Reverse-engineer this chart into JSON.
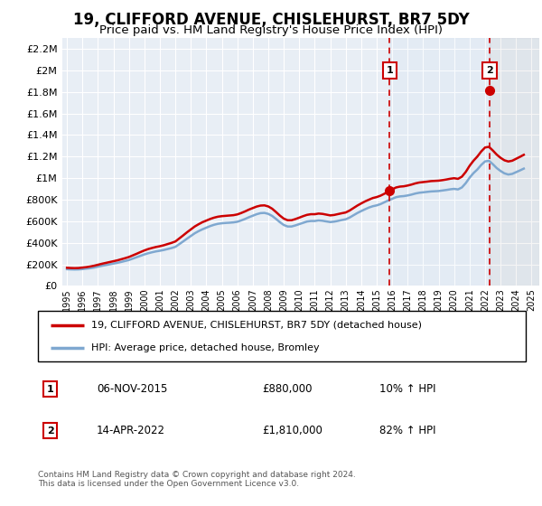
{
  "title": "19, CLIFFORD AVENUE, CHISLEHURST, BR7 5DY",
  "subtitle": "Price paid vs. HM Land Registry's House Price Index (HPI)",
  "title_fontsize": 12,
  "subtitle_fontsize": 9.5,
  "background_color": "#ffffff",
  "plot_bg_color": "#e8eef5",
  "grid_color": "#ffffff",
  "ylim": [
    0,
    2300000
  ],
  "yticks": [
    0,
    200000,
    400000,
    600000,
    800000,
    1000000,
    1200000,
    1400000,
    1600000,
    1800000,
    2000000,
    2200000
  ],
  "ytick_labels": [
    "£0",
    "£200K",
    "£400K",
    "£600K",
    "£800K",
    "£1M",
    "£1.2M",
    "£1.4M",
    "£1.6M",
    "£1.8M",
    "£2M",
    "£2.2M"
  ],
  "xlim_start": 1994.7,
  "xlim_end": 2025.5,
  "xtick_years": [
    1995,
    1996,
    1997,
    1998,
    1999,
    2000,
    2001,
    2002,
    2003,
    2004,
    2005,
    2006,
    2007,
    2008,
    2009,
    2010,
    2011,
    2012,
    2013,
    2014,
    2015,
    2016,
    2017,
    2018,
    2019,
    2020,
    2021,
    2022,
    2023,
    2024,
    2025
  ],
  "hpi_color": "#7fa8d0",
  "price_color": "#cc0000",
  "marker1_x": 2015.84,
  "marker1_y": 880000,
  "marker1_label": "1",
  "marker2_x": 2022.28,
  "marker2_y": 1810000,
  "marker2_label": "2",
  "annotation1": [
    "1",
    "06-NOV-2015",
    "£880,000",
    "10% ↑ HPI"
  ],
  "annotation2": [
    "2",
    "14-APR-2022",
    "£1,810,000",
    "82% ↑ HPI"
  ],
  "legend_line1": "19, CLIFFORD AVENUE, CHISLEHURST, BR7 5DY (detached house)",
  "legend_line2": "HPI: Average price, detached house, Bromley",
  "footer": "Contains HM Land Registry data © Crown copyright and database right 2024.\nThis data is licensed under the Open Government Licence v3.0.",
  "hpi_data_x": [
    1995.0,
    1995.25,
    1995.5,
    1995.75,
    1996.0,
    1996.25,
    1996.5,
    1996.75,
    1997.0,
    1997.25,
    1997.5,
    1997.75,
    1998.0,
    1998.25,
    1998.5,
    1998.75,
    1999.0,
    1999.25,
    1999.5,
    1999.75,
    2000.0,
    2000.25,
    2000.5,
    2000.75,
    2001.0,
    2001.25,
    2001.5,
    2001.75,
    2002.0,
    2002.25,
    2002.5,
    2002.75,
    2003.0,
    2003.25,
    2003.5,
    2003.75,
    2004.0,
    2004.25,
    2004.5,
    2004.75,
    2005.0,
    2005.25,
    2005.5,
    2005.75,
    2006.0,
    2006.25,
    2006.5,
    2006.75,
    2007.0,
    2007.25,
    2007.5,
    2007.75,
    2008.0,
    2008.25,
    2008.5,
    2008.75,
    2009.0,
    2009.25,
    2009.5,
    2009.75,
    2010.0,
    2010.25,
    2010.5,
    2010.75,
    2011.0,
    2011.25,
    2011.5,
    2011.75,
    2012.0,
    2012.25,
    2012.5,
    2012.75,
    2013.0,
    2013.25,
    2013.5,
    2013.75,
    2014.0,
    2014.25,
    2014.5,
    2014.75,
    2015.0,
    2015.25,
    2015.5,
    2015.75,
    2016.0,
    2016.25,
    2016.5,
    2016.75,
    2017.0,
    2017.25,
    2017.5,
    2017.75,
    2018.0,
    2018.25,
    2018.5,
    2018.75,
    2019.0,
    2019.25,
    2019.5,
    2019.75,
    2020.0,
    2020.25,
    2020.5,
    2020.75,
    2021.0,
    2021.25,
    2021.5,
    2021.75,
    2022.0,
    2022.25,
    2022.5,
    2022.75,
    2023.0,
    2023.25,
    2023.5,
    2023.75,
    2024.0,
    2024.25,
    2024.5
  ],
  "hpi_data_y": [
    155000,
    153000,
    152000,
    153000,
    156000,
    160000,
    164000,
    170000,
    178000,
    186000,
    193000,
    200000,
    207000,
    214000,
    222000,
    231000,
    240000,
    253000,
    266000,
    279000,
    292000,
    303000,
    312000,
    320000,
    326000,
    333000,
    342000,
    351000,
    362000,
    387000,
    412000,
    438000,
    463000,
    488000,
    508000,
    525000,
    540000,
    555000,
    567000,
    576000,
    581000,
    584000,
    586000,
    589000,
    595000,
    607000,
    621000,
    637000,
    651000,
    665000,
    675000,
    677000,
    668000,
    649000,
    621000,
    591000,
    565000,
    551000,
    551000,
    561000,
    573000,
    585000,
    597000,
    602000,
    602000,
    607000,
    604000,
    598000,
    592000,
    596000,
    603000,
    611000,
    618000,
    634000,
    655000,
    676000,
    694000,
    711000,
    727000,
    739000,
    747000,
    759000,
    776000,
    793000,
    808000,
    823000,
    830000,
    833000,
    839000,
    847000,
    857000,
    864000,
    868000,
    872000,
    876000,
    878000,
    880000,
    885000,
    890000,
    896000,
    900000,
    895000,
    913000,
    953000,
    1004000,
    1046000,
    1080000,
    1122000,
    1155000,
    1160000,
    1129000,
    1093000,
    1066000,
    1044000,
    1033000,
    1039000,
    1055000,
    1071000,
    1088000
  ],
  "price_data_x": [
    1995.0,
    1995.25,
    1995.5,
    1995.75,
    1996.0,
    1996.25,
    1996.5,
    1996.75,
    1997.0,
    1997.25,
    1997.5,
    1997.75,
    1998.0,
    1998.25,
    1998.5,
    1998.75,
    1999.0,
    1999.25,
    1999.5,
    1999.75,
    2000.0,
    2000.25,
    2000.5,
    2000.75,
    2001.0,
    2001.25,
    2001.5,
    2001.75,
    2002.0,
    2002.25,
    2002.5,
    2002.75,
    2003.0,
    2003.25,
    2003.5,
    2003.75,
    2004.0,
    2004.25,
    2004.5,
    2004.75,
    2005.0,
    2005.25,
    2005.5,
    2005.75,
    2006.0,
    2006.25,
    2006.5,
    2006.75,
    2007.0,
    2007.25,
    2007.5,
    2007.75,
    2008.0,
    2008.25,
    2008.5,
    2008.75,
    2009.0,
    2009.25,
    2009.5,
    2009.75,
    2010.0,
    2010.25,
    2010.5,
    2010.75,
    2011.0,
    2011.25,
    2011.5,
    2011.75,
    2012.0,
    2012.25,
    2012.5,
    2012.75,
    2013.0,
    2013.25,
    2013.5,
    2013.75,
    2014.0,
    2014.25,
    2014.5,
    2014.75,
    2015.0,
    2015.25,
    2015.5,
    2015.75,
    2016.0,
    2016.25,
    2016.5,
    2016.75,
    2017.0,
    2017.25,
    2017.5,
    2017.75,
    2018.0,
    2018.25,
    2018.5,
    2018.75,
    2019.0,
    2019.25,
    2019.5,
    2019.75,
    2020.0,
    2020.25,
    2020.5,
    2020.75,
    2021.0,
    2021.25,
    2021.5,
    2021.75,
    2022.0,
    2022.25,
    2022.5,
    2022.75,
    2023.0,
    2023.25,
    2023.5,
    2023.75,
    2024.0,
    2024.25,
    2024.5
  ],
  "price_data_y": [
    168000,
    166000,
    165000,
    166000,
    170000,
    174000,
    180000,
    187000,
    196000,
    205000,
    213000,
    221000,
    229000,
    237000,
    247000,
    257000,
    268000,
    283000,
    298000,
    314000,
    329000,
    342000,
    352000,
    361000,
    368000,
    377000,
    388000,
    399000,
    412000,
    440000,
    468000,
    497000,
    524000,
    551000,
    572000,
    591000,
    606000,
    621000,
    633000,
    642000,
    647000,
    650000,
    653000,
    656000,
    663000,
    676000,
    691000,
    708000,
    722000,
    736000,
    745000,
    747000,
    737000,
    716000,
    685000,
    652000,
    624000,
    609000,
    609000,
    620000,
    633000,
    647000,
    659000,
    665000,
    665000,
    671000,
    668000,
    661000,
    654000,
    658000,
    666000,
    674000,
    681000,
    699000,
    722000,
    745000,
    765000,
    784000,
    800000,
    815000,
    824000,
    837000,
    855000,
    876000,
    895000,
    913000,
    921000,
    924000,
    931000,
    940000,
    951000,
    959000,
    963000,
    967000,
    972000,
    974000,
    976000,
    981000,
    987000,
    994000,
    999000,
    993000,
    1013000,
    1057000,
    1114000,
    1161000,
    1200000,
    1247000,
    1284000,
    1290000,
    1256000,
    1218000,
    1188000,
    1165000,
    1154000,
    1161000,
    1179000,
    1197000,
    1216000
  ]
}
